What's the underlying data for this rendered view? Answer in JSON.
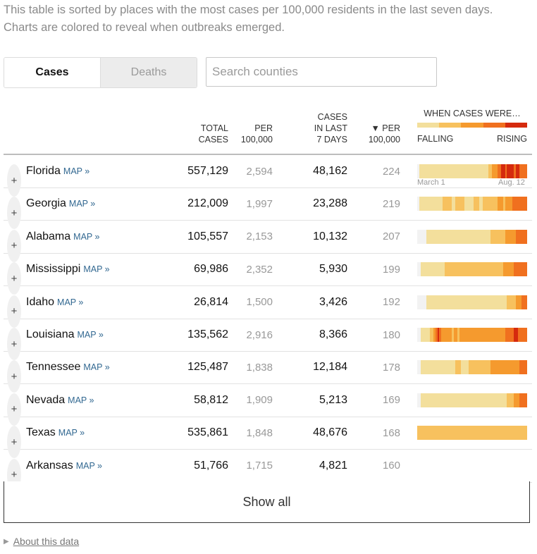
{
  "intro": "This table is sorted by places with the most cases per 100,000 residents in the last seven days. Charts are colored to reveal when outbreaks emerged.",
  "tabs": {
    "cases": "Cases",
    "deaths": "Deaths"
  },
  "search": {
    "placeholder": "Search counties"
  },
  "headers": {
    "total": [
      "TOTAL",
      "CASES"
    ],
    "per1": [
      "PER",
      "100,000"
    ],
    "week": [
      "CASES",
      "IN LAST",
      "7 DAYS"
    ],
    "per2": [
      "▼ PER",
      "100,000"
    ],
    "when": "WHEN CASES WERE…",
    "falling": "FALLING",
    "rising": "RISING"
  },
  "colors": {
    "level0": "#f2f2f2",
    "level1": "#f3df9c",
    "level2": "#f7c15e",
    "level3": "#f59a2e",
    "level4": "#f0701f",
    "level5": "#d52a0e",
    "link": "#326891"
  },
  "map_label": "MAP »",
  "rows": [
    {
      "name": "Florida",
      "total": "557,129",
      "per1": "2,594",
      "week": "48,162",
      "per2": "224",
      "spark": [
        0,
        1,
        1,
        1,
        1,
        1,
        1,
        1,
        1,
        1,
        1,
        1,
        1,
        1,
        1,
        1,
        1,
        1,
        1,
        1,
        1,
        1,
        1,
        1,
        1,
        1,
        1,
        1,
        1,
        1,
        1,
        1,
        1,
        1,
        1,
        1,
        1,
        1,
        1,
        2,
        2,
        3,
        3,
        3,
        4,
        4,
        5,
        5,
        4,
        5,
        5,
        5,
        5,
        4,
        5,
        5,
        4,
        4,
        4,
        4
      ]
    },
    {
      "name": "Georgia",
      "total": "212,009",
      "per1": "1,997",
      "week": "23,288",
      "per2": "219",
      "spark": [
        0,
        1,
        1,
        1,
        1,
        1,
        1,
        1,
        1,
        1,
        1,
        1,
        1,
        1,
        2,
        2,
        2,
        2,
        2,
        1,
        1,
        2,
        2,
        2,
        2,
        2,
        1,
        1,
        1,
        1,
        1,
        2,
        2,
        2,
        1,
        1,
        2,
        2,
        2,
        2,
        2,
        2,
        2,
        2,
        3,
        3,
        3,
        2,
        3,
        3,
        3,
        3,
        4,
        4,
        4,
        4,
        4,
        4,
        4,
        4
      ]
    },
    {
      "name": "Alabama",
      "total": "105,557",
      "per1": "2,153",
      "week": "10,132",
      "per2": "207",
      "spark": [
        0,
        0,
        0,
        0,
        0,
        1,
        1,
        1,
        1,
        1,
        1,
        1,
        1,
        1,
        1,
        1,
        1,
        1,
        1,
        1,
        1,
        1,
        1,
        1,
        1,
        1,
        1,
        1,
        1,
        1,
        1,
        1,
        1,
        1,
        1,
        1,
        1,
        1,
        1,
        1,
        2,
        2,
        2,
        2,
        2,
        2,
        2,
        2,
        3,
        3,
        3,
        3,
        3,
        3,
        4,
        4,
        4,
        4,
        4,
        4
      ]
    },
    {
      "name": "Mississippi",
      "total": "69,986",
      "per1": "2,352",
      "week": "5,930",
      "per2": "199",
      "spark": [
        0,
        0,
        1,
        1,
        1,
        1,
        1,
        1,
        1,
        1,
        1,
        1,
        1,
        1,
        1,
        2,
        2,
        2,
        2,
        2,
        2,
        2,
        2,
        2,
        2,
        2,
        2,
        2,
        2,
        2,
        2,
        2,
        2,
        2,
        2,
        2,
        2,
        2,
        2,
        2,
        2,
        2,
        2,
        2,
        2,
        2,
        2,
        3,
        3,
        3,
        3,
        3,
        3,
        4,
        4,
        4,
        4,
        4,
        4,
        4
      ]
    },
    {
      "name": "Idaho",
      "total": "26,814",
      "per1": "1,500",
      "week": "3,426",
      "per2": "192",
      "spark": [
        0,
        0,
        0,
        0,
        0,
        1,
        1,
        1,
        1,
        1,
        1,
        1,
        1,
        1,
        1,
        1,
        1,
        1,
        1,
        1,
        1,
        1,
        1,
        1,
        1,
        1,
        1,
        1,
        1,
        1,
        1,
        1,
        1,
        1,
        1,
        1,
        1,
        1,
        1,
        1,
        1,
        1,
        1,
        1,
        1,
        1,
        1,
        1,
        1,
        2,
        2,
        2,
        2,
        2,
        3,
        3,
        3,
        4,
        4,
        4
      ]
    },
    {
      "name": "Louisiana",
      "total": "135,562",
      "per1": "2,916",
      "week": "8,366",
      "per2": "180",
      "spark": [
        0,
        0,
        1,
        1,
        1,
        1,
        1,
        2,
        2,
        3,
        4,
        5,
        4,
        3,
        3,
        3,
        3,
        3,
        3,
        2,
        3,
        3,
        2,
        3,
        3,
        3,
        3,
        3,
        3,
        3,
        3,
        3,
        3,
        3,
        3,
        3,
        3,
        3,
        3,
        3,
        3,
        3,
        3,
        3,
        3,
        3,
        3,
        3,
        4,
        4,
        4,
        4,
        4,
        5,
        5,
        4,
        4,
        4,
        4,
        4
      ]
    },
    {
      "name": "Tennessee",
      "total": "125,487",
      "per1": "1,838",
      "week": "12,184",
      "per2": "178",
      "spark": [
        0,
        0,
        1,
        1,
        1,
        1,
        1,
        1,
        1,
        1,
        1,
        1,
        1,
        1,
        1,
        1,
        1,
        1,
        1,
        1,
        1,
        2,
        2,
        2,
        1,
        1,
        1,
        1,
        2,
        2,
        2,
        2,
        2,
        2,
        2,
        2,
        2,
        2,
        2,
        2,
        3,
        3,
        3,
        3,
        3,
        3,
        3,
        3,
        3,
        3,
        3,
        3,
        3,
        3,
        3,
        3,
        4,
        4,
        4,
        4
      ]
    },
    {
      "name": "Nevada",
      "total": "58,812",
      "per1": "1,909",
      "week": "5,213",
      "per2": "169",
      "spark": [
        0,
        0,
        1,
        1,
        1,
        1,
        1,
        1,
        1,
        1,
        1,
        1,
        1,
        1,
        1,
        1,
        1,
        1,
        1,
        1,
        1,
        1,
        1,
        1,
        1,
        1,
        1,
        1,
        1,
        1,
        1,
        1,
        1,
        1,
        1,
        1,
        1,
        1,
        1,
        1,
        1,
        1,
        1,
        1,
        1,
        1,
        1,
        1,
        1,
        2,
        2,
        2,
        2,
        3,
        3,
        3,
        4,
        4,
        4,
        4
      ]
    },
    {
      "name": "Texas",
      "total": "535,861",
      "per1": "1,848",
      "week": "48,676",
      "per2": "168",
      "spark": [
        2,
        2,
        2,
        2,
        2,
        2,
        2,
        2,
        2,
        2,
        2,
        2,
        2,
        2,
        2,
        2,
        2,
        2,
        2,
        2,
        2,
        2,
        2,
        2,
        2,
        2,
        2,
        2,
        2,
        2,
        2,
        2,
        2,
        2,
        2,
        2,
        2,
        2,
        2,
        2,
        2,
        2,
        2,
        2,
        2,
        2,
        2,
        2,
        2,
        2,
        2,
        2,
        2,
        2,
        2,
        2,
        2,
        2,
        2,
        2
      ]
    },
    {
      "name": "Arkansas",
      "total": "51,766",
      "per1": "1,715",
      "week": "4,821",
      "per2": "160",
      "spark": []
    }
  ],
  "spark_labels": {
    "start": "March 1",
    "end": "Aug. 12"
  },
  "show_all": "Show all",
  "about": "About this data"
}
